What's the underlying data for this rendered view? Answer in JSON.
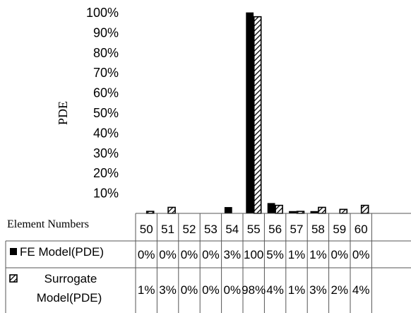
{
  "chart_data": {
    "type": "bar",
    "ylabel": "PDE",
    "ylim": [
      0,
      100
    ],
    "y_ticks": [
      "10%",
      "20%",
      "30%",
      "40%",
      "50%",
      "60%",
      "70%",
      "80%",
      "90%",
      "100%"
    ],
    "table_header_label": "Element Numbers",
    "categories": [
      "50",
      "51",
      "52",
      "53",
      "54",
      "55",
      "56",
      "57",
      "58",
      "59",
      "60"
    ],
    "series": [
      {
        "name": "FE Model(PDE)",
        "values": [
          0,
          0,
          0,
          0,
          3,
          100,
          5,
          1,
          1,
          0,
          0
        ],
        "labels": [
          "0%",
          "0%",
          "0%",
          "0%",
          "3%",
          "100",
          "5%",
          "1%",
          "1%",
          "0%",
          "0%"
        ],
        "fill": "#000000"
      },
      {
        "name": "Surrogate Model(PDE)",
        "values": [
          1,
          3,
          0,
          0,
          0,
          98,
          4,
          1,
          3,
          2,
          4
        ],
        "labels": [
          "1%",
          "3%",
          "0%",
          "0%",
          "0%",
          "98%",
          "4%",
          "1%",
          "3%",
          "2%",
          "4%"
        ],
        "fill": "hatched"
      }
    ]
  }
}
